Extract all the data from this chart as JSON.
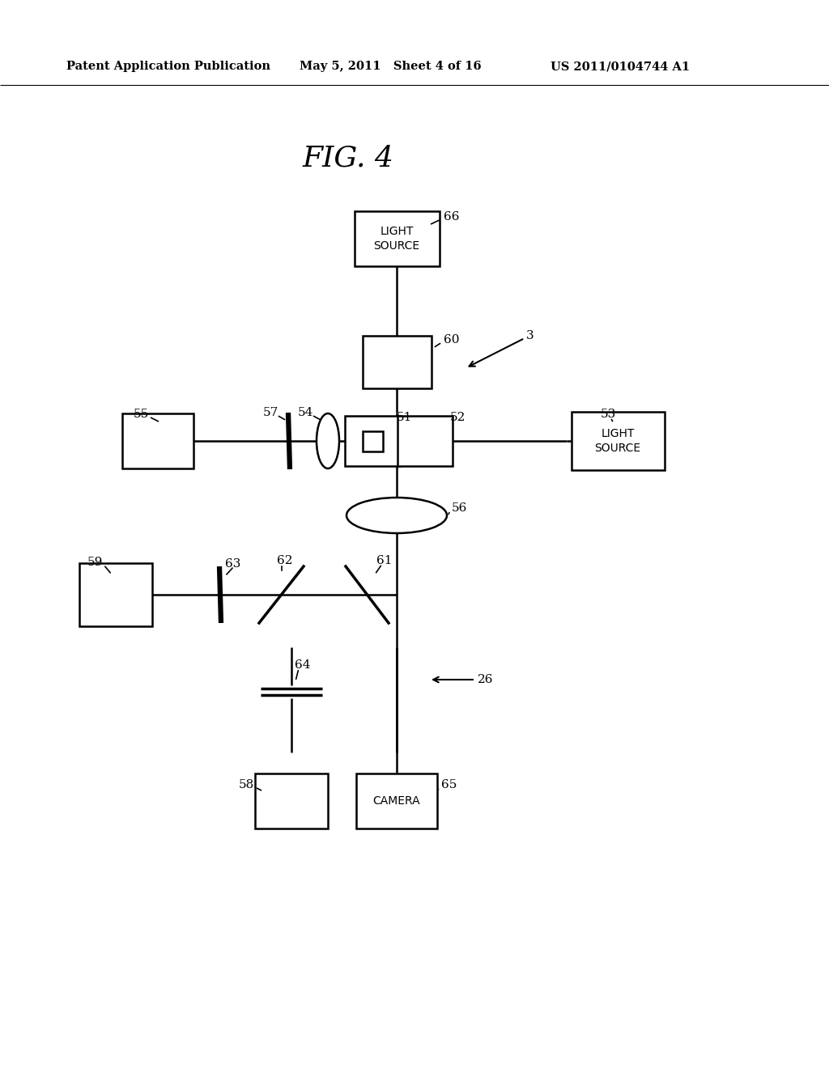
{
  "bg_color": "#ffffff",
  "header_left": "Patent Application Publication",
  "header_mid": "May 5, 2011   Sheet 4 of 16",
  "header_right": "US 2011/0104744 A1",
  "fig_title": "FIG. 4"
}
